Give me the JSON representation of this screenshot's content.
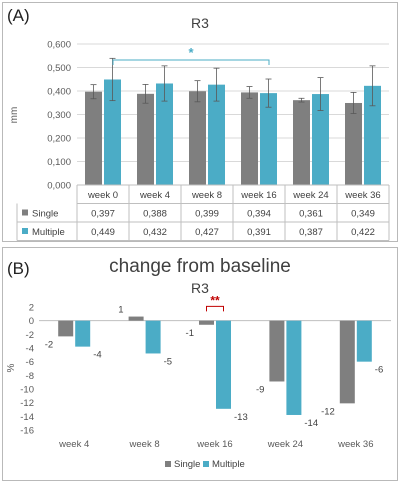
{
  "chart_data": [
    {
      "type": "bar",
      "panel_label": "(A)",
      "title": "R3",
      "ylabel": "mm",
      "ylim": [
        0,
        0.6
      ],
      "yticks": [
        "0,000",
        "0,100",
        "0,200",
        "0,300",
        "0,400",
        "0,500",
        "0,600"
      ],
      "categories": [
        "week 0",
        "week 4",
        "week 8",
        "week 16",
        "week 24",
        "week 36"
      ],
      "series": [
        {
          "name": "Single",
          "color": "#7f7f7f",
          "values": [
            0.397,
            0.388,
            0.399,
            0.394,
            0.361,
            0.349
          ],
          "errors": [
            0.03,
            0.04,
            0.045,
            0.025,
            0.008,
            0.045
          ],
          "table_values": [
            "0,397",
            "0,388",
            "0,399",
            "0,394",
            "0,361",
            "0,349"
          ]
        },
        {
          "name": "Multiple",
          "color": "#4bacc6",
          "values": [
            0.449,
            0.432,
            0.427,
            0.391,
            0.387,
            0.422
          ],
          "errors": [
            0.09,
            0.075,
            0.07,
            0.06,
            0.07,
            0.085
          ],
          "table_values": [
            "0,449",
            "0,432",
            "0,427",
            "0,391",
            "0,387",
            "0,422"
          ]
        }
      ],
      "significance": {
        "label": "*",
        "from": "week 0",
        "to": "week 16",
        "color": "#4bacc6"
      },
      "grid": true,
      "legend": "data-table"
    },
    {
      "type": "bar",
      "panel_label": "(B)",
      "title": "change from baseline",
      "subtitle": "R3",
      "ylabel": "%",
      "ylim": [
        -16,
        2
      ],
      "yticks": [
        "2",
        "0",
        "-2",
        "-4",
        "-6",
        "-8",
        "-10",
        "-12",
        "-14",
        "-16"
      ],
      "categories": [
        "week 4",
        "week 8",
        "week 16",
        "week 24",
        "week 36"
      ],
      "series": [
        {
          "name": "Single",
          "color": "#7f7f7f",
          "values": [
            -2.3,
            0.6,
            -0.6,
            -8.9,
            -12.1
          ],
          "labels": [
            "-2",
            "1",
            "-1",
            "-9",
            "-12"
          ]
        },
        {
          "name": "Multiple",
          "color": "#4bacc6",
          "values": [
            -3.8,
            -4.8,
            -12.9,
            -13.8,
            -6.0
          ],
          "labels": [
            "-4",
            "-5",
            "-13",
            "-14",
            "-6"
          ]
        }
      ],
      "significance": {
        "label": "**",
        "category": "week 16",
        "color": "#c00000"
      },
      "grid": false,
      "legend": "bottom"
    }
  ]
}
